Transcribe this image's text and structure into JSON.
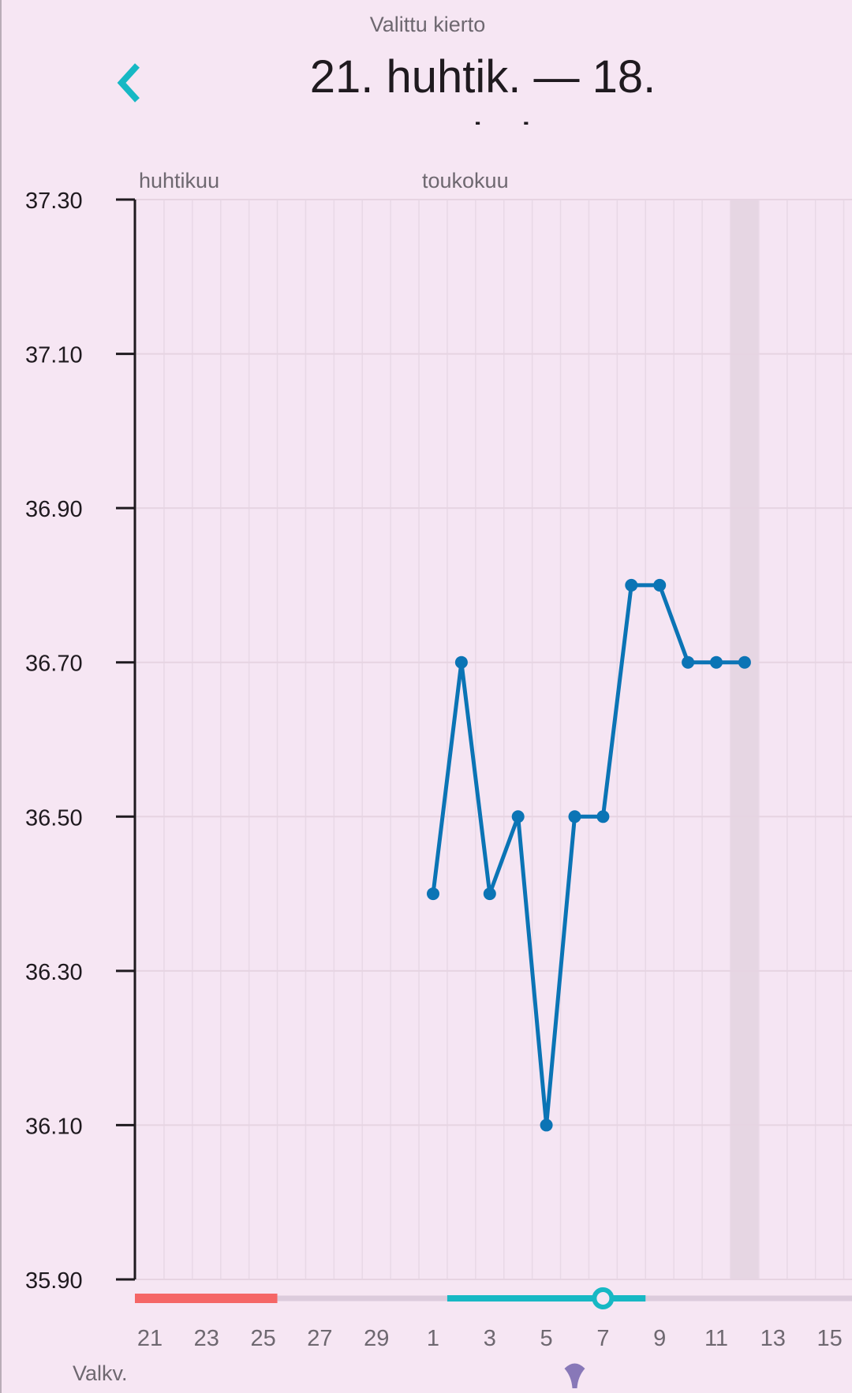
{
  "header": {
    "subtitle": "Valittu kierto",
    "title_line1": "21. huhtik. — 18.",
    "title_line2": "toukok.",
    "back_icon": "chevron-left-icon"
  },
  "colors": {
    "accent": "#17b8c4",
    "line": "#0b74b5",
    "period": "#f56666",
    "track": "#dccbdc",
    "highlight": "#e6d6e3",
    "drop": "#8878b8"
  },
  "chart_data": {
    "type": "line",
    "month_labels": [
      {
        "label": "huhtikuu",
        "date": "Apr 21"
      },
      {
        "label": "toukokuu",
        "date": "May 1"
      }
    ],
    "x_dates": [
      "Apr 21",
      "Apr 22",
      "Apr 23",
      "Apr 24",
      "Apr 25",
      "Apr 26",
      "Apr 27",
      "Apr 28",
      "Apr 29",
      "Apr 30",
      "May 1",
      "May 2",
      "May 3",
      "May 4",
      "May 5",
      "May 6",
      "May 7",
      "May 8",
      "May 9",
      "May 10",
      "May 11",
      "May 12",
      "May 13",
      "May 14",
      "May 15",
      "May 16"
    ],
    "x_tick_labels": [
      "21",
      "23",
      "25",
      "27",
      "29",
      "1",
      "3",
      "5",
      "7",
      "9",
      "11",
      "13",
      "15"
    ],
    "y_tick_labels": [
      "37.30",
      "37.10",
      "36.90",
      "36.70",
      "36.50",
      "36.30",
      "36.10",
      "35.90"
    ],
    "ylim": [
      35.9,
      37.3
    ],
    "grid": true,
    "series": [
      {
        "x": [
          "May 1",
          "May 2",
          "May 3",
          "May 4",
          "May 5",
          "May 6",
          "May 7",
          "May 8",
          "May 9",
          "May 10",
          "May 11",
          "May 12"
        ],
        "values": [
          36.4,
          36.7,
          36.4,
          36.5,
          36.1,
          36.5,
          36.5,
          36.8,
          36.8,
          36.7,
          36.7,
          36.7
        ]
      }
    ],
    "highlighted_day": "May 12",
    "period_days": [
      "Apr 21",
      "Apr 25"
    ],
    "fertile_window": [
      "May 2",
      "May 8"
    ],
    "ovulation_day": "May 7",
    "discharge_marker_day": "May 6"
  },
  "footer": {
    "row_label": "Valkv.",
    "marker_icon": "discharge-drop-icon"
  }
}
